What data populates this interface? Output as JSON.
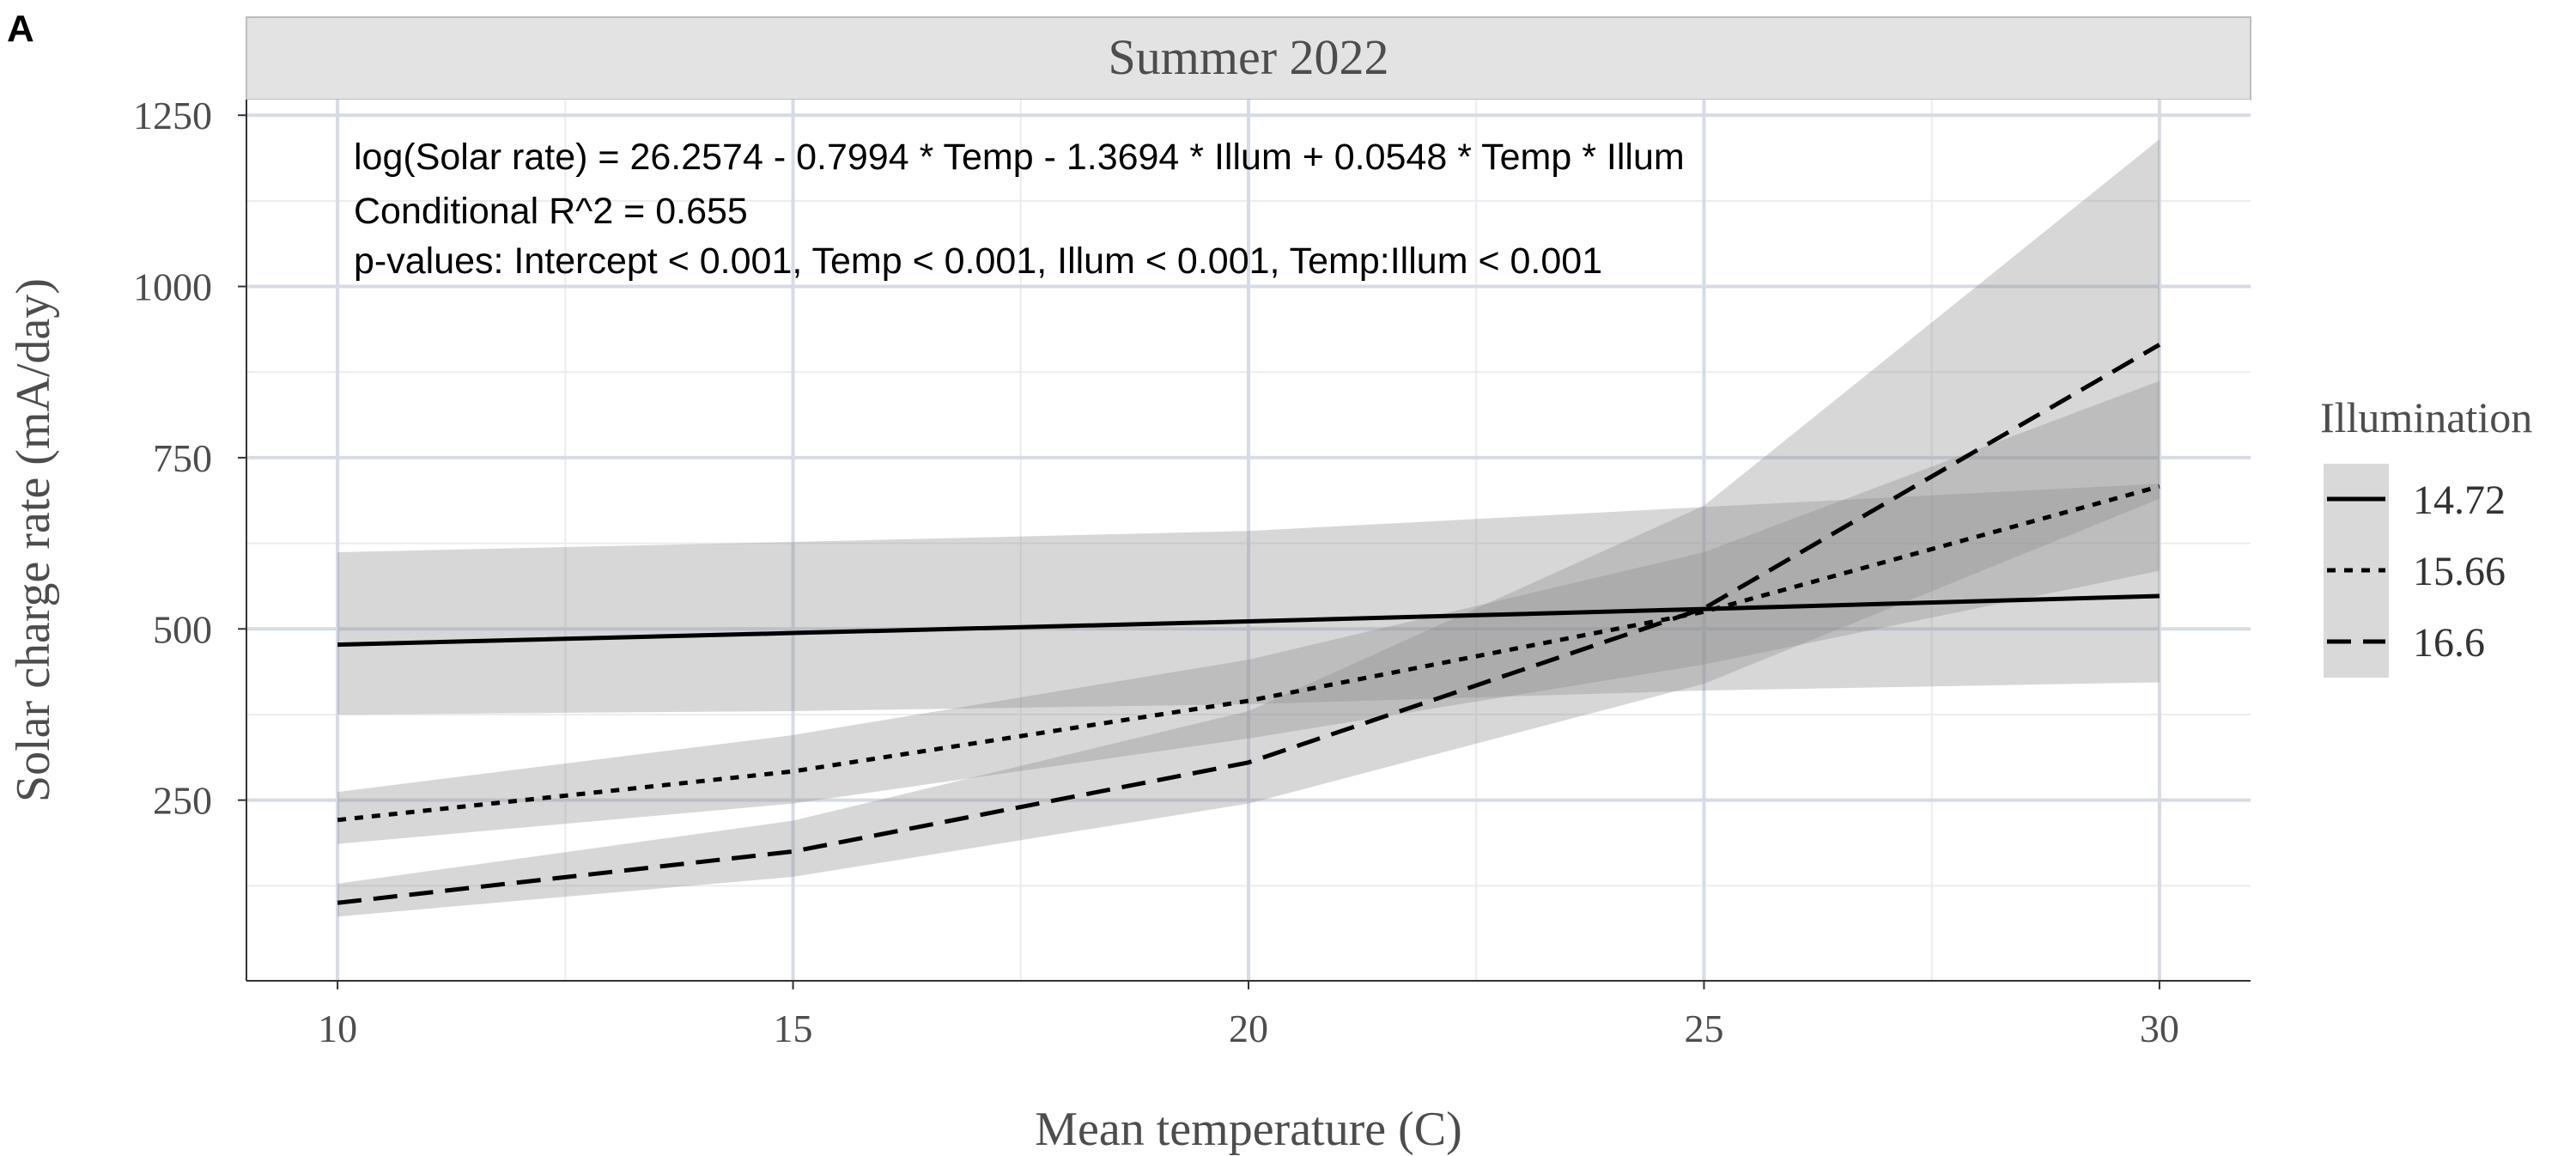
{
  "figure": {
    "panel_label": "A",
    "strip_title": "Summer 2022",
    "annotations": [
      "log(Solar rate) = 26.2574 - 0.7994 * Temp - 1.3694 * Illum + 0.0548 * Temp * Illum",
      "Conditional R^2 = 0.655",
      "p-values: Intercept < 0.001, Temp < 0.001, Illum < 0.001, Temp:Illum < 0.001"
    ]
  },
  "chart_data": {
    "type": "line",
    "title": "Summer 2022",
    "xlabel": "Mean temperature (C)",
    "ylabel": "Solar charge rate (mA/day)",
    "xlim": [
      9,
      31
    ],
    "ylim": [
      0,
      1250
    ],
    "x_ticks": [
      10,
      15,
      20,
      25,
      30
    ],
    "y_ticks": [
      250,
      500,
      750,
      1000,
      1250
    ],
    "grid": true,
    "legend": {
      "title": "Illumination",
      "position": "right"
    },
    "x": [
      10,
      15,
      20,
      25,
      30
    ],
    "series": [
      {
        "name": "14.72",
        "linestyle": "solid",
        "values": [
          477,
          494,
          511,
          529,
          548
        ],
        "lower": [
          375,
          380,
          390,
          410,
          422
        ],
        "upper": [
          612,
          627,
          643,
          678,
          712
        ]
      },
      {
        "name": "15.66",
        "linestyle": "dotted",
        "values": [
          221,
          292,
          395,
          525,
          708
        ],
        "lower": [
          186,
          245,
          340,
          448,
          585
        ],
        "upper": [
          262,
          345,
          455,
          612,
          862
        ]
      },
      {
        "name": "16.6",
        "linestyle": "dashed",
        "values": [
          100,
          175,
          305,
          530,
          915
        ],
        "lower": [
          80,
          138,
          245,
          420,
          690
        ],
        "upper": [
          128,
          220,
          380,
          680,
          1215
        ]
      }
    ]
  }
}
